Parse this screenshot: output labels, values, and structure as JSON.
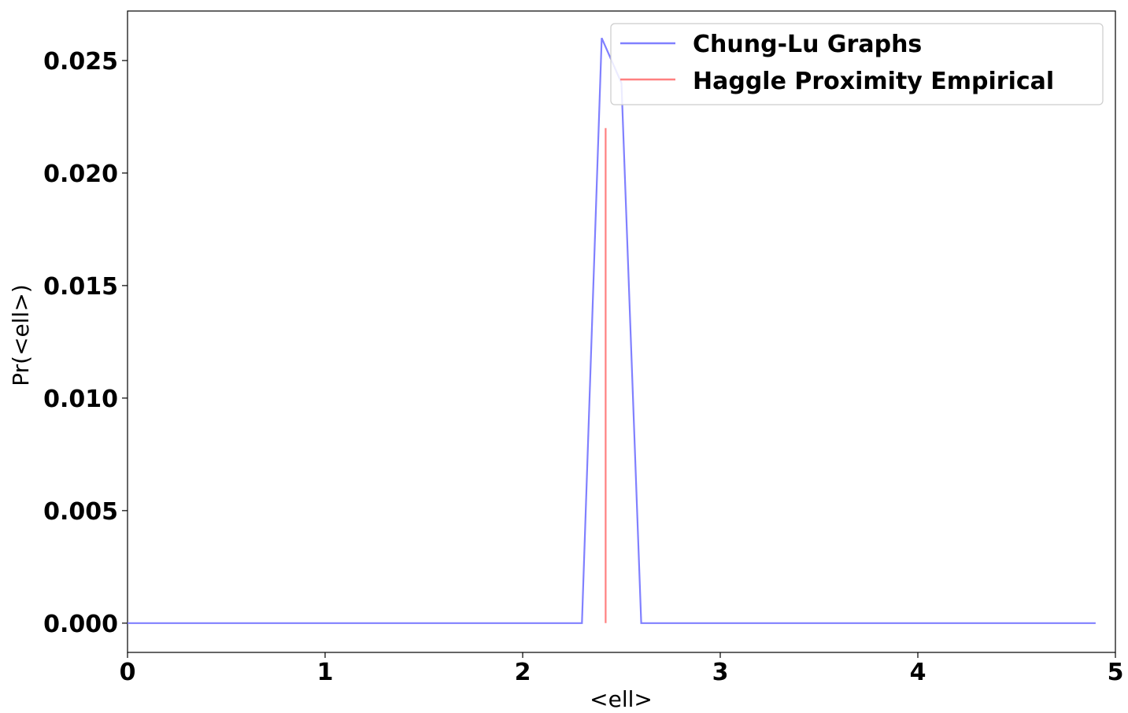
{
  "chart_data": {
    "type": "line",
    "xlabel": "<ell>",
    "ylabel": "Pr(<ell>)",
    "xlim": [
      0,
      5
    ],
    "ylim": [
      -0.0013,
      0.0272
    ],
    "xticks": [
      0,
      1,
      2,
      3,
      4,
      5
    ],
    "xtick_labels": [
      "0",
      "1",
      "2",
      "3",
      "4",
      "5"
    ],
    "yticks": [
      0.0,
      0.005,
      0.01,
      0.015,
      0.02,
      0.025
    ],
    "ytick_labels": [
      "0.000",
      "0.005",
      "0.010",
      "0.015",
      "0.020",
      "0.025"
    ],
    "grid": false,
    "legend_position": "upper-right",
    "series": [
      {
        "name": "Chung-Lu Graphs",
        "color": "#8080ff",
        "x": [
          0,
          2.3,
          2.4,
          2.5,
          2.6,
          4.9
        ],
        "y": [
          0.0,
          0.0,
          0.026,
          0.024,
          0.0,
          0.0
        ]
      },
      {
        "name": "Haggle Proximity Empirical",
        "color": "#ff8080",
        "x": [
          2.42,
          2.42
        ],
        "y": [
          0.0,
          0.022
        ]
      }
    ]
  }
}
